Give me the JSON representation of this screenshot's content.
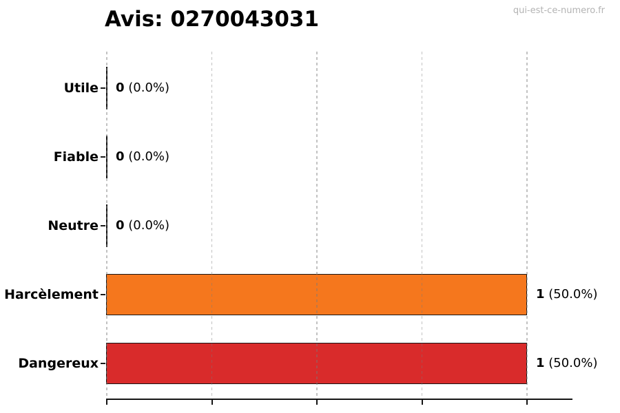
{
  "title": "Avis: 0270043031",
  "watermark": "qui-est-ce-numero.fr",
  "chart_data": {
    "type": "bar",
    "orientation": "horizontal",
    "title": "Avis: 0270043031",
    "categories": [
      "Utile",
      "Fiable",
      "Neutre",
      "Harcèlement",
      "Dangereux"
    ],
    "values": [
      0,
      0,
      0,
      1,
      1
    ],
    "percent_labels": [
      "0.0%",
      "0.0%",
      "0.0%",
      "50.0%",
      "50.0%"
    ],
    "value_labels": [
      "0 (0.0%)",
      "0 (0.0%)",
      "0 (0.0%)",
      "1 (50.0%)",
      "1 (50.0%)"
    ],
    "bar_colors": [
      null,
      null,
      null,
      "#f5771d",
      "#d92b2b"
    ],
    "bar_edge_color": "#141414",
    "xlim": [
      0,
      1.1
    ],
    "x_ticks": [
      0,
      0.25,
      0.5,
      0.75,
      1.0
    ],
    "x_tick_labels": [],
    "grid": true,
    "grid_style": "dashed-vertical",
    "grid_color": "#c9c9c9",
    "xlabel": "",
    "ylabel": ""
  }
}
